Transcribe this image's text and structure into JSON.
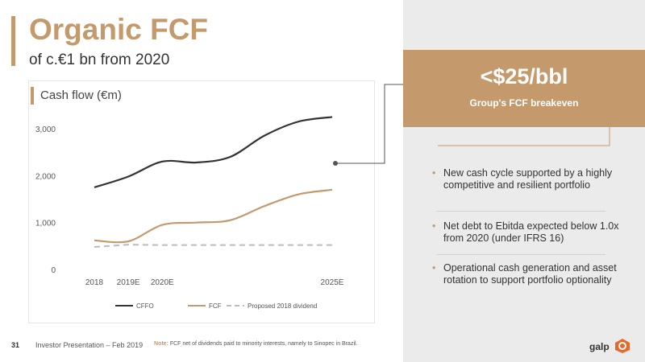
{
  "slide": {
    "title": "Organic FCF",
    "subtitle": "of c.€1 bn from 2020",
    "chart_panel_title": "Cash flow (€m)",
    "breakeven_value": "<$25/bbl",
    "breakeven_label": "Group's FCF breakeven",
    "bullets": [
      "New cash cycle supported by a highly competitive and resilient portfolio",
      "Net debt to Ebitda expected below 1.0x from 2020 (under IFRS 16)",
      "Operational cash generation and asset rotation to support portfolio optionality"
    ],
    "footer": {
      "page_number": "31",
      "presentation": "Investor Presentation – Feb 2019",
      "note_label": "Note:",
      "note_text": "FCF net of dividends paid to minority interests, namely to Sinopec in Brazil."
    },
    "logo": "galp"
  },
  "colors": {
    "accent": "#c49a6c",
    "cffo": "#333333",
    "dividend": "#bbbbbb",
    "panel": "#ebebeb"
  },
  "chart_data": {
    "type": "line",
    "title": "Cash flow (€m)",
    "categories": [
      "2018",
      "2019E",
      "2020E",
      "2025E"
    ],
    "y_ticks": [
      "0",
      "1,000",
      "2,000",
      "3,000"
    ],
    "ylim": [
      0,
      3000
    ],
    "grid": false,
    "legend_position": "bottom",
    "series": [
      {
        "name": "CFFO",
        "color": "#333333",
        "x": [
          2018,
          2019,
          2020,
          2021,
          2022,
          2023,
          2024,
          2025
        ],
        "y": [
          1750,
          1980,
          2300,
          2280,
          2400,
          2850,
          3150,
          3250
        ]
      },
      {
        "name": "FCF",
        "color": "#c49a6c",
        "x": [
          2018,
          2019,
          2020,
          2021,
          2022,
          2023,
          2024,
          2025
        ],
        "y": [
          620,
          600,
          950,
          1000,
          1050,
          1350,
          1600,
          1700
        ]
      },
      {
        "name": "Proposed 2018 dividend",
        "color": "#bbbbbb",
        "dashed": true,
        "x": [
          2018,
          2019,
          2020,
          2025
        ],
        "y": [
          480,
          530,
          520,
          520
        ]
      }
    ]
  }
}
